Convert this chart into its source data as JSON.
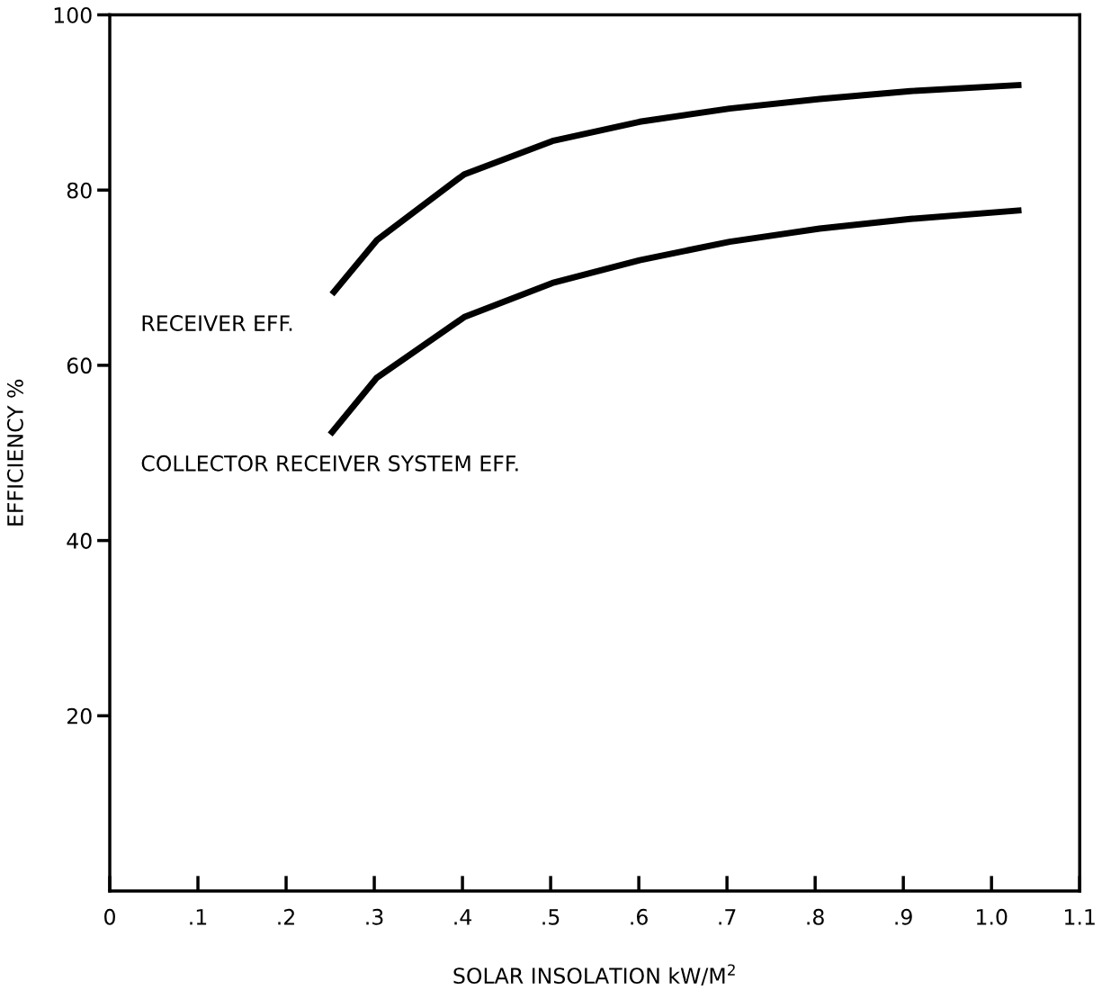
{
  "chart_data": {
    "type": "line",
    "xlabel": "SOLAR INSOLATION kW/M$^{2}$",
    "ylabel": "EFFICIENCY %",
    "xlim": [
      0,
      1.1
    ],
    "ylim": [
      0,
      100
    ],
    "xticks": [
      {
        "value": 0,
        "label": "0"
      },
      {
        "value": 0.1,
        "label": ".1"
      },
      {
        "value": 0.2,
        "label": ".2"
      },
      {
        "value": 0.3,
        "label": ".3"
      },
      {
        "value": 0.4,
        "label": ".4"
      },
      {
        "value": 0.5,
        "label": ".5"
      },
      {
        "value": 0.6,
        "label": ".6"
      },
      {
        "value": 0.7,
        "label": ".7"
      },
      {
        "value": 0.8,
        "label": ".8"
      },
      {
        "value": 0.9,
        "label": ".9"
      },
      {
        "value": 1.0,
        "label": "1.0"
      },
      {
        "value": 1.1,
        "label": "1.1"
      }
    ],
    "yticks": [
      20,
      40,
      60,
      80,
      100
    ],
    "grid": false,
    "legend": false,
    "marker": "none",
    "line_style": "solid",
    "series": [
      {
        "name": "RECEIVER EFF.",
        "color": "#000000",
        "x": [
          0.252,
          0.303,
          0.402,
          0.502,
          0.601,
          0.703,
          0.805,
          0.908,
          1.034
        ],
        "values": [
          68.1,
          74.3,
          81.8,
          85.6,
          87.8,
          89.3,
          90.4,
          91.3,
          92.0
        ]
      },
      {
        "name": "COLLECTOR RECEIVER SYSTEM EFF.",
        "color": "#000000",
        "x": [
          0.25,
          0.303,
          0.402,
          0.502,
          0.601,
          0.703,
          0.805,
          0.908,
          1.034
        ],
        "values": [
          52.1,
          58.6,
          65.5,
          69.4,
          72.0,
          74.1,
          75.6,
          76.7,
          77.7
        ]
      }
    ]
  }
}
